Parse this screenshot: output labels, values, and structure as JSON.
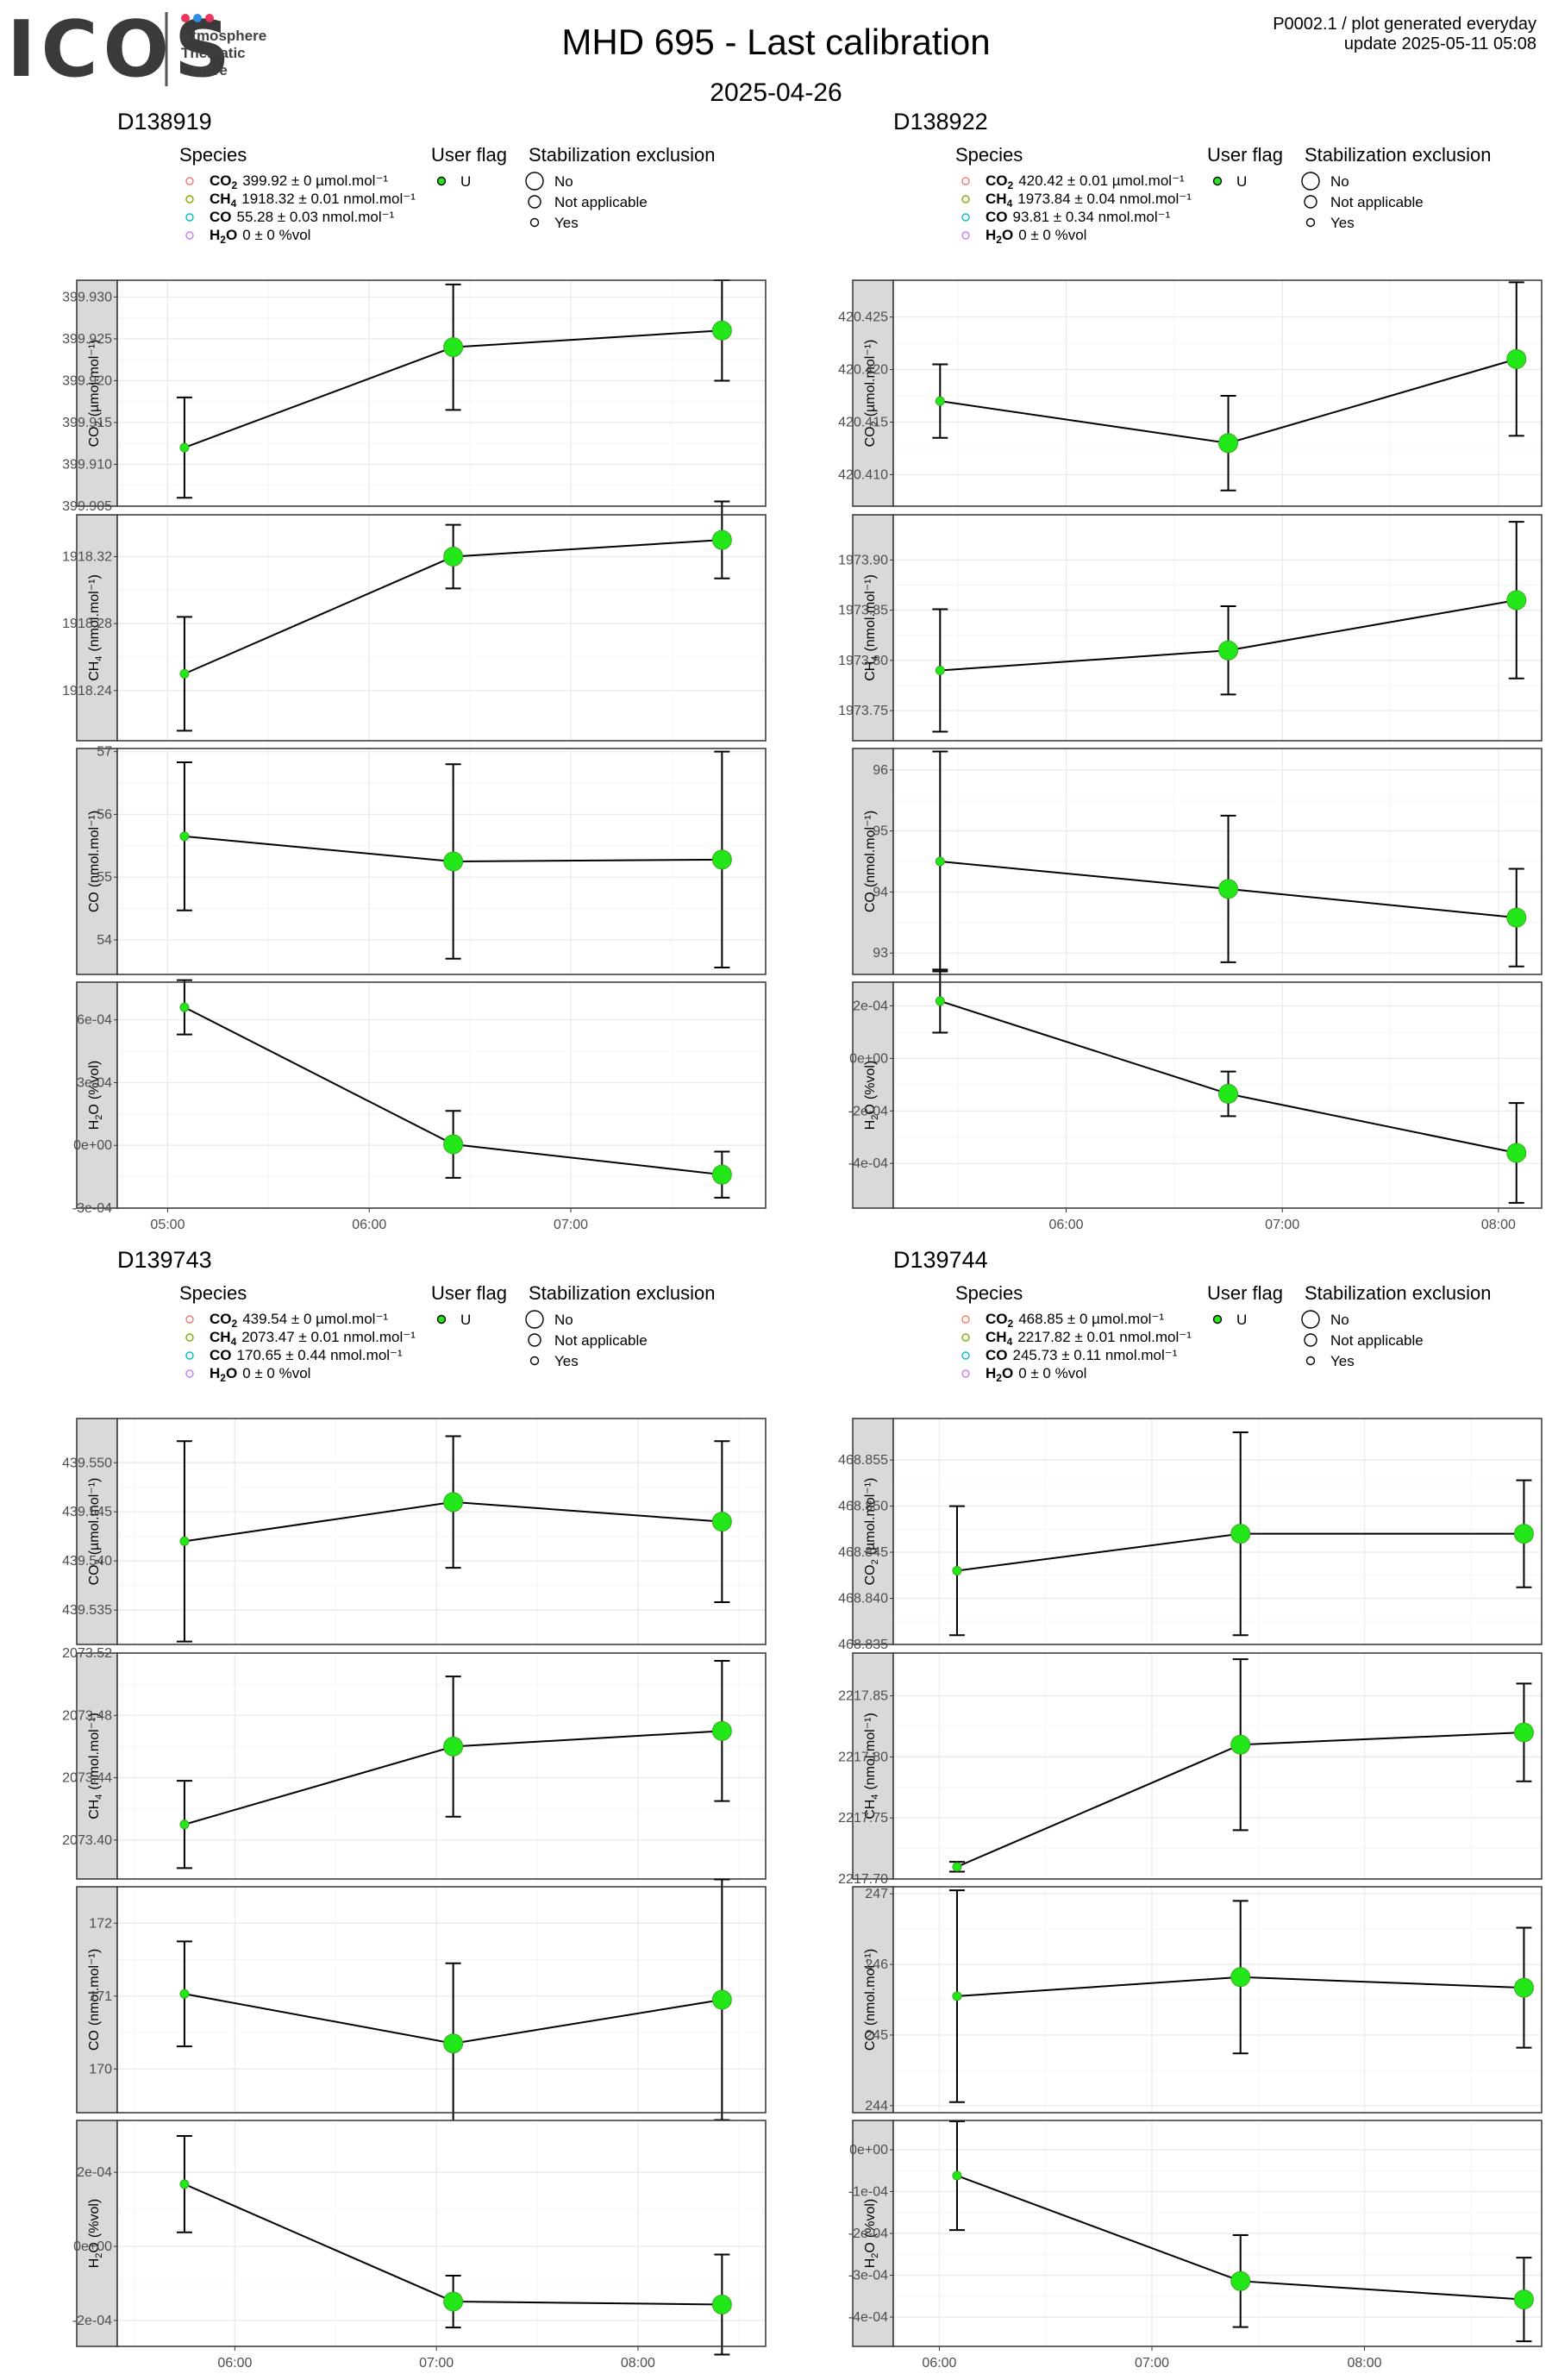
{
  "header": {
    "logo_text": "ICOS",
    "logo_sub": [
      "Atmosphere",
      "Thematic",
      "Centre"
    ],
    "logo_dot_colors": [
      "#e8365d",
      "#2f8de4",
      "#e8365d"
    ],
    "title": "MHD 695 - Last calibration",
    "subtitle": "2025-04-26",
    "corner_line1": "P0002.1 / plot generated everyday",
    "corner_line2": "update  2025-05-11 05:08"
  },
  "legend": {
    "species_title": "Species",
    "userflag_title": "User flag",
    "stab_title": "Stabilization exclusion",
    "userflag_item": "U",
    "stab_items": [
      "No",
      "Not applicable",
      "Yes"
    ],
    "species_colors": [
      "#F8766D",
      "#7CAE00",
      "#00BFC4",
      "#C77CFF"
    ]
  },
  "colors": {
    "point_fill": "#22e81a",
    "point_edge": "#3aaa1e",
    "panel_border": "#333333",
    "strip_fill": "#d9d9d9",
    "grid_major": "#ebebeb",
    "grid_minor": "#f5f5f5"
  },
  "chart_data": [
    {
      "type": "scatter",
      "title": "D138919",
      "x_ticks": [
        "05:00",
        "06:00",
        "07:00"
      ],
      "x_range": [
        "04:45",
        "07:58"
      ],
      "x_tick_values": [
        "05:00",
        "06:00",
        "07:00"
      ],
      "species_labels": [
        {
          "name": "CO",
          "sub": "2",
          "value": "399.92 ± 0 µmol.mol⁻¹"
        },
        {
          "name": "CH",
          "sub": "4",
          "value": "1918.32 ± 0.01 nmol.mol⁻¹"
        },
        {
          "name": "CO",
          "sub": "",
          "value": "55.28 ± 0.03 nmol.mol⁻¹"
        },
        {
          "name": "H",
          "sub": "2",
          "name2": "O",
          "value": "0 ± 0 %vol"
        }
      ],
      "x": [
        "05:05",
        "06:25",
        "07:45"
      ],
      "panels": [
        {
          "ylabel": "CO",
          "ysub": "2",
          "yunit": "(µmol.mol⁻¹)",
          "ylim": [
            399.905,
            399.932
          ],
          "ticks": [
            399.905,
            399.91,
            399.915,
            399.92,
            399.925,
            399.93
          ],
          "tick_labels": [
            "399.905",
            "399.910",
            "399.915",
            "399.920",
            "399.925",
            "399.930"
          ],
          "y": [
            399.912,
            399.924,
            399.926
          ],
          "err": [
            0.006,
            0.0075,
            0.006
          ],
          "size": [
            1,
            3,
            3
          ]
        },
        {
          "ylabel": "CH",
          "ysub": "4",
          "yunit": "(nmol.mol⁻¹)",
          "ylim": [
            1918.21,
            1918.345
          ],
          "ticks": [
            1918.24,
            1918.28,
            1918.32
          ],
          "tick_labels": [
            "1918.24",
            "1918.28",
            "1918.32"
          ],
          "y": [
            1918.25,
            1918.32,
            1918.33
          ],
          "err": [
            0.034,
            0.019,
            0.023
          ],
          "size": [
            1,
            3,
            3
          ]
        },
        {
          "ylabel": "CO",
          "ysub": "",
          "yunit": "(nmol.mol⁻¹)",
          "ylim": [
            53.45,
            57.05
          ],
          "ticks": [
            54,
            55,
            56,
            57
          ],
          "tick_labels": [
            "54",
            "55",
            "56",
            "57"
          ],
          "y": [
            55.65,
            55.25,
            55.28
          ],
          "err": [
            1.18,
            1.55,
            1.72
          ],
          "size": [
            1,
            3,
            3
          ]
        },
        {
          "ylabel": "H",
          "ysub": "2",
          "ylabel2": "O",
          "yunit": "(%vol)",
          "ylim": [
            -0.0003,
            0.00078
          ],
          "ticks": [
            -0.0003,
            0.0,
            0.0003,
            0.0006
          ],
          "tick_labels": [
            "-3e-04",
            "0e+00",
            "3e-04",
            "6e-04"
          ],
          "y": [
            0.00066,
            5e-06,
            -0.00014
          ],
          "err": [
            0.00013,
            0.00016,
            0.00011
          ],
          "size": [
            1,
            3,
            3
          ]
        }
      ]
    },
    {
      "type": "scatter",
      "title": "D138922",
      "x_ticks": [
        "06:00",
        "07:00",
        "08:00"
      ],
      "x_range": [
        "05:12",
        "08:12"
      ],
      "x_tick_values": [
        "06:00",
        "07:00",
        "08:00"
      ],
      "species_labels": [
        {
          "name": "CO",
          "sub": "2",
          "value": "420.42 ± 0.01 µmol.mol⁻¹"
        },
        {
          "name": "CH",
          "sub": "4",
          "value": "1973.84 ± 0.04 nmol.mol⁻¹"
        },
        {
          "name": "CO",
          "sub": "",
          "value": "93.81 ± 0.34 nmol.mol⁻¹"
        },
        {
          "name": "H",
          "sub": "2",
          "name2": "O",
          "value": "0 ± 0 %vol"
        }
      ],
      "x": [
        "05:25",
        "06:45",
        "08:05"
      ],
      "panels": [
        {
          "ylabel": "CO",
          "ysub": "2",
          "yunit": "(µmol.mol⁻¹)",
          "ylim": [
            420.407,
            420.4285
          ],
          "ticks": [
            420.41,
            420.415,
            420.42,
            420.425
          ],
          "tick_labels": [
            "420.410",
            "420.415",
            "420.420",
            "420.425"
          ],
          "y": [
            420.417,
            420.413,
            420.421
          ],
          "err": [
            0.0035,
            0.0045,
            0.0073
          ],
          "size": [
            1,
            3,
            3
          ]
        },
        {
          "ylabel": "CH",
          "ysub": "4",
          "yunit": "(nmol.mol⁻¹)",
          "ylim": [
            1973.72,
            1973.945
          ],
          "ticks": [
            1973.75,
            1973.8,
            1973.85,
            1973.9
          ],
          "tick_labels": [
            "1973.75",
            "1973.80",
            "1973.85",
            "1973.90"
          ],
          "y": [
            1973.79,
            1973.81,
            1973.86
          ],
          "err": [
            0.061,
            0.044,
            0.078
          ],
          "size": [
            1,
            3,
            3
          ]
        },
        {
          "ylabel": "CO",
          "ysub": "",
          "yunit": "(nmol.mol⁻¹)",
          "ylim": [
            92.65,
            96.35
          ],
          "ticks": [
            93,
            94,
            95,
            96
          ],
          "tick_labels": [
            "93",
            "94",
            "95",
            "96"
          ],
          "y": [
            94.5,
            94.05,
            93.58
          ],
          "err": [
            1.8,
            1.2,
            0.8
          ],
          "size": [
            1,
            3,
            3
          ]
        },
        {
          "ylabel": "H",
          "ysub": "2",
          "ylabel2": "O",
          "yunit": "(%vol)",
          "ylim": [
            -0.00057,
            0.00029
          ],
          "ticks": [
            -0.0004,
            -0.0002,
            0.0,
            0.0002
          ],
          "tick_labels": [
            "-4e-04",
            "-2e-04",
            "0e+00",
            "2e-04"
          ],
          "y": [
            0.000218,
            -0.000135,
            -0.00036
          ],
          "err": [
            0.00012,
            8.5e-05,
            0.00019
          ],
          "size": [
            1,
            3,
            3
          ]
        }
      ]
    },
    {
      "type": "scatter",
      "title": "D139743",
      "x_ticks": [
        "06:00",
        "07:00",
        "08:00"
      ],
      "x_range": [
        "05:25",
        "08:38"
      ],
      "x_tick_values": [
        "06:00",
        "07:00",
        "08:00"
      ],
      "species_labels": [
        {
          "name": "CO",
          "sub": "2",
          "value": "439.54 ± 0 µmol.mol⁻¹"
        },
        {
          "name": "CH",
          "sub": "4",
          "value": "2073.47 ± 0.01 nmol.mol⁻¹"
        },
        {
          "name": "CO",
          "sub": "",
          "value": "170.65 ± 0.44 nmol.mol⁻¹"
        },
        {
          "name": "H",
          "sub": "2",
          "name2": "O",
          "value": "0 ± 0 %vol"
        }
      ],
      "x": [
        "05:45",
        "07:05",
        "08:25"
      ],
      "panels": [
        {
          "ylabel": "CO",
          "ysub": "2",
          "yunit": "(µmol.mol⁻¹)",
          "ylim": [
            439.5315,
            439.5545
          ],
          "ticks": [
            439.535,
            439.54,
            439.545,
            439.55
          ],
          "tick_labels": [
            "439.535",
            "439.540",
            "439.545",
            "439.550"
          ],
          "y": [
            439.542,
            439.546,
            439.544
          ],
          "err": [
            0.0102,
            0.0067,
            0.0082
          ],
          "size": [
            1,
            3,
            3
          ]
        },
        {
          "ylabel": "CH",
          "ysub": "4",
          "yunit": "(nmol.mol⁻¹)",
          "ylim": [
            2073.375,
            2073.52
          ],
          "ticks": [
            2073.4,
            2073.44,
            2073.48,
            2073.52
          ],
          "tick_labels": [
            "2073.40",
            "2073.44",
            "2073.48",
            "2073.52"
          ],
          "y": [
            2073.41,
            2073.46,
            2073.47
          ],
          "err": [
            0.028,
            0.045,
            0.045
          ],
          "size": [
            1,
            3,
            3
          ]
        },
        {
          "ylabel": "CO",
          "ysub": "",
          "yunit": "(nmol.mol⁻¹)",
          "ylim": [
            169.4,
            172.5
          ],
          "ticks": [
            170,
            171,
            172
          ],
          "tick_labels": [
            "170",
            "171",
            "172"
          ],
          "y": [
            171.03,
            170.35,
            170.95
          ],
          "err": [
            0.72,
            1.1,
            1.65
          ],
          "size": [
            1,
            3,
            3
          ]
        },
        {
          "ylabel": "H",
          "ysub": "2",
          "ylabel2": "O",
          "yunit": "(%vol)",
          "ylim": [
            -0.00027,
            0.00034
          ],
          "ticks": [
            -0.0002,
            0.0,
            0.0002
          ],
          "tick_labels": [
            "-2e-04",
            "0e+00",
            "2e-04"
          ],
          "y": [
            0.000168,
            -0.000149,
            -0.000157
          ],
          "err": [
            0.00013,
            7e-05,
            0.000135
          ],
          "size": [
            1,
            3,
            3
          ]
        }
      ]
    },
    {
      "type": "scatter",
      "title": "D139744",
      "x_ticks": [
        "06:00",
        "07:00",
        "08:00"
      ],
      "x_range": [
        "05:47",
        "08:50"
      ],
      "x_tick_values": [
        "06:00",
        "07:00",
        "08:00"
      ],
      "species_labels": [
        {
          "name": "CO",
          "sub": "2",
          "value": "468.85 ± 0 µmol.mol⁻¹"
        },
        {
          "name": "CH",
          "sub": "4",
          "value": "2217.82 ± 0.01 nmol.mol⁻¹"
        },
        {
          "name": "CO",
          "sub": "",
          "value": "245.73 ± 0.11 nmol.mol⁻¹"
        },
        {
          "name": "H",
          "sub": "2",
          "name2": "O",
          "value": "0 ± 0 %vol"
        }
      ],
      "x": [
        "06:05",
        "07:25",
        "08:45"
      ],
      "panels": [
        {
          "ylabel": "CO",
          "ysub": "2",
          "yunit": "(µmol.mol⁻¹)",
          "ylim": [
            468.835,
            468.8595
          ],
          "ticks": [
            468.835,
            468.84,
            468.845,
            468.85,
            468.855
          ],
          "tick_labels": [
            "468.835",
            "468.840",
            "468.845",
            "468.850",
            "468.855"
          ],
          "y": [
            468.843,
            468.847,
            468.847
          ],
          "err": [
            0.007,
            0.011,
            0.0058
          ],
          "size": [
            1,
            3,
            3
          ]
        },
        {
          "ylabel": "CH",
          "ysub": "4",
          "yunit": "(nmol.mol⁻¹)",
          "ylim": [
            2217.7,
            2217.885
          ],
          "ticks": [
            2217.7,
            2217.75,
            2217.8,
            2217.85
          ],
          "tick_labels": [
            "2217.70",
            "2217.75",
            "2217.80",
            "2217.85"
          ],
          "y": [
            2217.71,
            2217.81,
            2217.82
          ],
          "err": [
            0.004,
            0.07,
            0.04
          ],
          "size": [
            1,
            3,
            3
          ]
        },
        {
          "ylabel": "CO",
          "ysub": "",
          "yunit": "(nmol.mol⁻¹)",
          "ylim": [
            243.9,
            247.1
          ],
          "ticks": [
            244,
            245,
            246,
            247
          ],
          "tick_labels": [
            "244",
            "245",
            "246",
            "247"
          ],
          "y": [
            245.55,
            245.82,
            245.67
          ],
          "err": [
            1.5,
            1.08,
            0.85
          ],
          "size": [
            1,
            3,
            3
          ]
        },
        {
          "ylabel": "H",
          "ysub": "2",
          "ylabel2": "O",
          "yunit": "(%vol)",
          "ylim": [
            -0.00047,
            7e-05
          ],
          "ticks": [
            -0.0004,
            -0.0003,
            -0.0002,
            -0.0001,
            0.0
          ],
          "tick_labels": [
            "-4e-04",
            "-3e-04",
            "-2e-04",
            "-1e-04",
            "0e+00"
          ],
          "y": [
            -6.2e-05,
            -0.000314,
            -0.000358
          ],
          "err": [
            0.00013,
            0.00011,
            0.0001
          ],
          "size": [
            1,
            3,
            3
          ]
        }
      ]
    }
  ]
}
